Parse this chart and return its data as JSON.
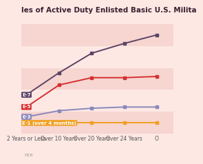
{
  "title": "les of Active Duty Enlisted Basic U.S. Milita",
  "background_color": "#fde8e4",
  "plot_bg_color": "#fde8e4",
  "band_color_alt": "#f7d5d0",
  "x_labels": [
    "2 Years or Less",
    "Over 10 Years",
    "Over 20 Years",
    "Over 24 Years",
    "O"
  ],
  "x_values": [
    0,
    1,
    2,
    3,
    4
  ],
  "series": [
    {
      "label": "E-7",
      "label_bg": "#5c4466",
      "color": "#5c4466",
      "y": [
        0.42,
        0.6,
        0.76,
        0.84,
        0.91
      ],
      "marker": "s",
      "markersize": 2.5,
      "linewidth": 1.4
    },
    {
      "label": "E-5",
      "label_bg": "#d63030",
      "color": "#d63030",
      "y": [
        0.32,
        0.5,
        0.56,
        0.56,
        0.57
      ],
      "marker": "s",
      "markersize": 2.5,
      "linewidth": 1.4
    },
    {
      "label": "E-3",
      "label_bg": "#8888bb",
      "color": "#8888bb",
      "y": [
        0.24,
        0.29,
        0.31,
        0.32,
        0.32
      ],
      "marker": "s",
      "markersize": 2.5,
      "linewidth": 1.4
    },
    {
      "label": "E-1 (over 4 months)",
      "label_bg": "#f0a020",
      "color": "#f0a020",
      "y": [
        0.19,
        0.19,
        0.19,
        0.19,
        0.19
      ],
      "marker": "s",
      "markersize": 2.5,
      "linewidth": 1.4
    }
  ],
  "ylim": [
    0.1,
    1.0
  ],
  "xlim": [
    -0.15,
    4.5
  ],
  "source_text": "nce",
  "title_fontsize": 7.5,
  "axis_fontsize": 5.5,
  "label_fontsize": 5
}
